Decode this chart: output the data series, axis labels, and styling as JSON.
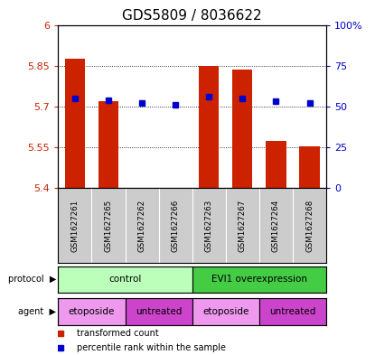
{
  "title": "GDS5809 / 8036622",
  "samples": [
    "GSM1627261",
    "GSM1627265",
    "GSM1627262",
    "GSM1627266",
    "GSM1627263",
    "GSM1627267",
    "GSM1627264",
    "GSM1627268"
  ],
  "transformed_counts": [
    5.875,
    5.72,
    5.402,
    5.402,
    5.848,
    5.836,
    5.575,
    5.553
  ],
  "percentile_ranks": [
    55,
    54,
    52,
    51,
    56,
    55,
    53,
    52
  ],
  "ylim_left": [
    5.4,
    6.0
  ],
  "ylim_right": [
    0,
    100
  ],
  "yticks_left": [
    5.4,
    5.55,
    5.7,
    5.85,
    6.0
  ],
  "ytick_labels_left": [
    "5.4",
    "5.55",
    "5.7",
    "5.85",
    "6"
  ],
  "yticks_right": [
    0,
    25,
    50,
    75,
    100
  ],
  "ytick_labels_right": [
    "0",
    "25",
    "50",
    "75",
    "100%"
  ],
  "bar_color": "#cc2200",
  "dot_color": "#0000cc",
  "bar_base": 5.4,
  "protocol_groups": [
    {
      "label": "control",
      "start": 0,
      "end": 4,
      "color": "#bbffbb"
    },
    {
      "label": "EVI1 overexpression",
      "start": 4,
      "end": 8,
      "color": "#44cc44"
    }
  ],
  "agent_groups": [
    {
      "label": "etoposide",
      "start": 0,
      "end": 2,
      "color": "#ee99ee"
    },
    {
      "label": "untreated",
      "start": 2,
      "end": 4,
      "color": "#cc44cc"
    },
    {
      "label": "etoposide",
      "start": 4,
      "end": 6,
      "color": "#ee99ee"
    },
    {
      "label": "untreated",
      "start": 6,
      "end": 8,
      "color": "#cc44cc"
    }
  ],
  "left_axis_color": "#cc2200",
  "right_axis_color": "#0000cc",
  "title_fontsize": 11,
  "tick_fontsize": 8,
  "bar_width": 0.6,
  "sample_bg_color": "#cccccc",
  "legend_red_label": "transformed count",
  "legend_blue_label": "percentile rank within the sample"
}
